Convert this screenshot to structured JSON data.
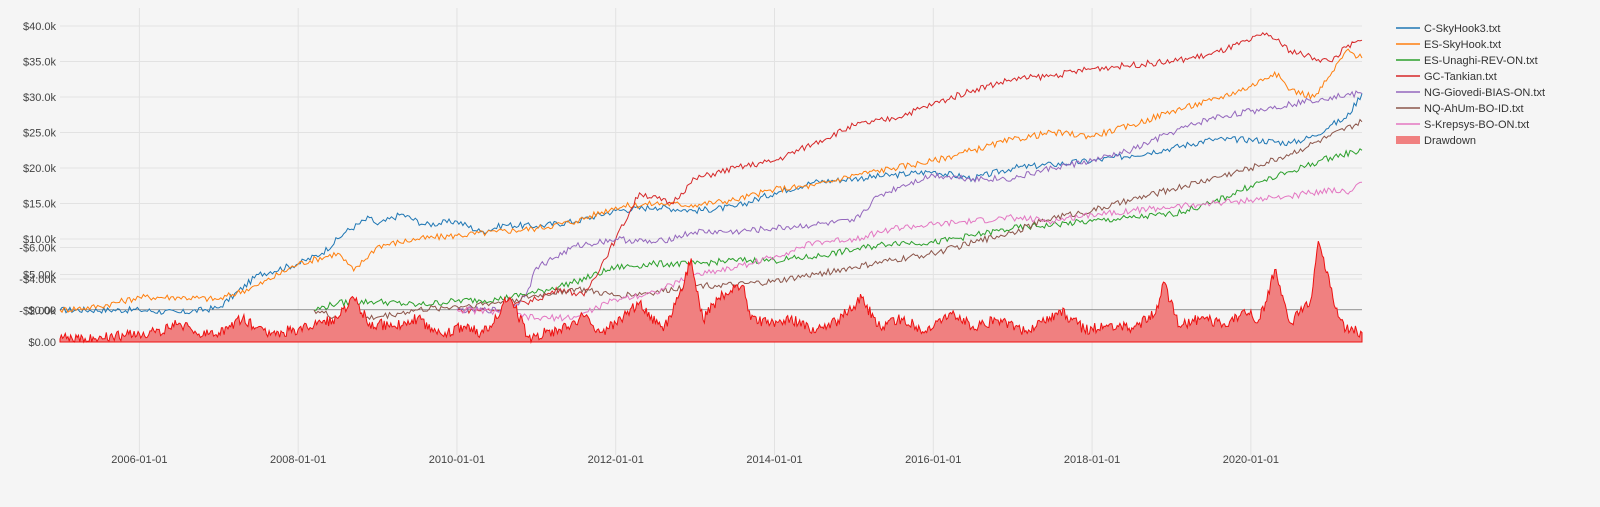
{
  "chart_data": [
    {
      "type": "line",
      "panel": "equity",
      "title": "",
      "xlabel": "",
      "ylabel": "",
      "x_unit": "year",
      "xlim": [
        2005.0,
        2021.4
      ],
      "ylim": [
        -1500,
        41000
      ],
      "y_ticks": [
        0,
        5000,
        10000,
        15000,
        20000,
        25000,
        30000,
        35000,
        40000
      ],
      "y_tick_labels": [
        "$0.00",
        "$5.00k",
        "$10.0k",
        "$15.0k",
        "$20.0k",
        "$25.0k",
        "$30.0k",
        "$35.0k",
        "$40.0k"
      ],
      "grid": true,
      "legend_position": "right",
      "series": [
        {
          "name": "C-SkyHook3.txt",
          "color": "#1f77b4",
          "x": [
            2005.0,
            2006.0,
            2006.5,
            2007.0,
            2007.5,
            2008.0,
            2008.3,
            2008.6,
            2008.9,
            2009.0,
            2009.3,
            2009.6,
            2010.0,
            2010.3,
            2010.6,
            2011.0,
            2011.5,
            2012.0,
            2012.5,
            2013.0,
            2013.5,
            2014.0,
            2014.5,
            2015.0,
            2015.5,
            2016.0,
            2016.5,
            2017.0,
            2017.5,
            2018.0,
            2018.5,
            2019.0,
            2019.5,
            2020.0,
            2020.5,
            2020.8,
            2021.0,
            2021.2,
            2021.4
          ],
          "y": [
            0,
            0,
            -400,
            300,
            5000,
            6500,
            8000,
            11000,
            13000,
            12000,
            13500,
            12000,
            12500,
            11000,
            12000,
            11800,
            12500,
            14000,
            14500,
            14000,
            14500,
            16500,
            18000,
            18500,
            19000,
            19500,
            18500,
            20000,
            20500,
            21000,
            21800,
            22800,
            24000,
            24000,
            23500,
            24500,
            26000,
            27000,
            30500
          ]
        },
        {
          "name": "ES-SkyHook.txt",
          "color": "#ff7f0e",
          "x": [
            2005.0,
            2005.5,
            2006.0,
            2006.5,
            2007.0,
            2007.5,
            2008.0,
            2008.5,
            2008.7,
            2009.0,
            2009.5,
            2010.0,
            2010.5,
            2011.0,
            2011.5,
            2012.0,
            2012.5,
            2013.0,
            2013.5,
            2014.0,
            2014.5,
            2015.0,
            2015.5,
            2016.0,
            2016.5,
            2017.0,
            2017.5,
            2018.0,
            2018.5,
            2019.0,
            2019.5,
            2020.0,
            2020.3,
            2020.5,
            2020.8,
            2021.0,
            2021.2,
            2021.4
          ],
          "y": [
            0,
            500,
            1800,
            1800,
            1500,
            3500,
            6500,
            8000,
            5500,
            9000,
            10000,
            10500,
            11000,
            11500,
            12500,
            14500,
            15000,
            14800,
            15500,
            17000,
            17500,
            19000,
            20000,
            21000,
            22500,
            24000,
            25000,
            24500,
            26000,
            28000,
            29500,
            31500,
            33500,
            31000,
            30000,
            33000,
            36500,
            35500
          ]
        },
        {
          "name": "ES-Unaghi-REV-ON.txt",
          "color": "#2ca02c",
          "x": [
            2008.2,
            2008.5,
            2009.0,
            2009.5,
            2010.0,
            2010.5,
            2011.0,
            2011.5,
            2012.0,
            2012.5,
            2013.0,
            2013.5,
            2014.0,
            2014.5,
            2015.0,
            2015.5,
            2016.0,
            2016.5,
            2017.0,
            2017.5,
            2018.0,
            2018.5,
            2019.0,
            2019.5,
            2020.0,
            2020.5,
            2021.0,
            2021.4
          ],
          "y": [
            0,
            1000,
            1200,
            700,
            1300,
            1500,
            2500,
            4000,
            6000,
            6500,
            6500,
            7000,
            7000,
            7500,
            8500,
            9500,
            9500,
            10500,
            11500,
            12000,
            12500,
            13000,
            13500,
            15000,
            17500,
            19500,
            21500,
            22500
          ]
        },
        {
          "name": "GC-Tankian.txt",
          "color": "#d62728",
          "x": [
            2010.0,
            2010.5,
            2011.0,
            2011.3,
            2011.6,
            2012.0,
            2012.3,
            2012.7,
            2013.0,
            2013.5,
            2014.0,
            2014.5,
            2015.0,
            2015.5,
            2016.0,
            2016.5,
            2017.0,
            2017.5,
            2018.0,
            2018.5,
            2019.0,
            2019.5,
            2020.0,
            2020.2,
            2020.5,
            2020.8,
            2021.0,
            2021.2,
            2021.4
          ],
          "y": [
            0,
            0,
            1500,
            3000,
            2000,
            10000,
            16500,
            15000,
            18500,
            20000,
            21000,
            23500,
            26000,
            27000,
            29000,
            31000,
            32500,
            33000,
            34000,
            34500,
            35000,
            36000,
            38000,
            39000,
            36500,
            35500,
            35000,
            37000,
            38000
          ]
        },
        {
          "name": "NG-Giovedi-BIAS-ON.txt",
          "color": "#9467bd",
          "x": [
            2010.0,
            2010.7,
            2010.9,
            2011.0,
            2011.5,
            2012.0,
            2012.5,
            2013.0,
            2013.5,
            2014.0,
            2014.5,
            2015.0,
            2015.3,
            2015.6,
            2016.0,
            2016.5,
            2017.0,
            2017.5,
            2018.0,
            2018.5,
            2019.0,
            2019.5,
            2020.0,
            2020.5,
            2021.0,
            2021.4
          ],
          "y": [
            0,
            0,
            3000,
            6000,
            9000,
            10000,
            9500,
            11000,
            11000,
            11500,
            12000,
            12500,
            16000,
            17500,
            19000,
            18500,
            18500,
            20000,
            21000,
            22500,
            25000,
            27000,
            28000,
            29000,
            30000,
            30500
          ]
        },
        {
          "name": "NQ-AhUm-BO-ID.txt",
          "color": "#8c564b",
          "x": [
            2008.2,
            2008.6,
            2009.0,
            2009.5,
            2010.0,
            2010.5,
            2011.0,
            2011.5,
            2012.0,
            2012.5,
            2013.0,
            2013.5,
            2014.0,
            2014.5,
            2015.0,
            2015.5,
            2016.0,
            2016.5,
            2017.0,
            2017.5,
            2018.0,
            2018.5,
            2019.0,
            2019.5,
            2020.0,
            2020.5,
            2021.0,
            2021.4
          ],
          "y": [
            0,
            -1500,
            -1000,
            0,
            500,
            1000,
            2000,
            3000,
            2000,
            2500,
            3500,
            3500,
            4000,
            5000,
            6000,
            7000,
            8000,
            9500,
            11000,
            13000,
            14000,
            15500,
            17000,
            18500,
            20000,
            22000,
            24500,
            26500
          ]
        },
        {
          "name": "S-Krepsys-BO-ON.txt",
          "color": "#e377c2",
          "x": [
            2010.0,
            2010.5,
            2011.0,
            2011.5,
            2012.0,
            2012.5,
            2013.0,
            2013.5,
            2014.0,
            2014.5,
            2015.0,
            2015.5,
            2016.0,
            2016.5,
            2017.0,
            2017.5,
            2018.0,
            2018.5,
            2019.0,
            2019.5,
            2020.0,
            2020.5,
            2021.0,
            2021.2,
            2021.4
          ],
          "y": [
            0,
            -200,
            -1200,
            -1000,
            1500,
            2500,
            5000,
            6000,
            7500,
            9500,
            10000,
            11500,
            12000,
            12500,
            13000,
            12500,
            13500,
            14000,
            14500,
            15000,
            15500,
            16000,
            17000,
            16500,
            18000
          ]
        }
      ]
    },
    {
      "type": "area",
      "panel": "drawdown",
      "title": "",
      "xlabel": "",
      "ylabel": "",
      "x_unit": "year",
      "xlim": [
        2005.0,
        2021.4
      ],
      "ylim": [
        -7000,
        0
      ],
      "y_ticks": [
        0,
        -2000,
        -4000,
        -6000
      ],
      "y_tick_labels": [
        "$0.00",
        "-$2.00k",
        "-$4.00k",
        "-$6.00k"
      ],
      "x_ticks": [
        2006,
        2008,
        2010,
        2012,
        2014,
        2016,
        2018,
        2020
      ],
      "x_tick_labels": [
        "2006-01-01",
        "2008-01-01",
        "2010-01-01",
        "2012-01-01",
        "2014-01-01",
        "2016-01-01",
        "2018-01-01",
        "2020-01-01"
      ],
      "grid": true,
      "series": [
        {
          "name": "Drawdown",
          "color": "#f08080",
          "stroke": "#ee1111",
          "x": [
            2005.0,
            2005.8,
            2006.2,
            2006.5,
            2006.8,
            2007.0,
            2007.3,
            2007.6,
            2008.0,
            2008.3,
            2008.5,
            2008.7,
            2008.9,
            2009.2,
            2009.5,
            2009.8,
            2010.1,
            2010.3,
            2010.5,
            2010.6,
            2010.7,
            2010.9,
            2011.3,
            2011.6,
            2011.8,
            2012.0,
            2012.3,
            2012.6,
            2012.8,
            2012.95,
            2013.1,
            2013.3,
            2013.6,
            2013.7,
            2013.9,
            2014.2,
            2014.5,
            2014.8,
            2015.1,
            2015.3,
            2015.6,
            2015.9,
            2016.2,
            2016.5,
            2016.8,
            2017.1,
            2017.3,
            2017.6,
            2017.9,
            2018.2,
            2018.5,
            2018.8,
            2018.9,
            2019.1,
            2019.4,
            2019.7,
            2019.9,
            2020.1,
            2020.2,
            2020.3,
            2020.5,
            2020.6,
            2020.75,
            2020.85,
            2021.0,
            2021.1,
            2021.2,
            2021.4
          ],
          "y": [
            -200,
            -400,
            -600,
            -1200,
            -400,
            -600,
            -1500,
            -500,
            -800,
            -1200,
            -1500,
            -2800,
            -1200,
            -1000,
            -1500,
            -500,
            -1000,
            -600,
            -1500,
            -2800,
            -2500,
            -300,
            -800,
            -1600,
            -600,
            -1200,
            -2500,
            -700,
            -3000,
            -5300,
            -1400,
            -2800,
            -3600,
            -1400,
            -1200,
            -1500,
            -600,
            -1400,
            -2800,
            -1000,
            -1500,
            -700,
            -1800,
            -1000,
            -1400,
            -700,
            -1000,
            -2000,
            -800,
            -1000,
            -900,
            -1800,
            -3800,
            -1000,
            -1600,
            -1000,
            -2000,
            -1400,
            -2600,
            -4600,
            -1200,
            -1700,
            -2600,
            -6400,
            -3500,
            -1600,
            -800,
            -600
          ]
        }
      ]
    }
  ]
}
